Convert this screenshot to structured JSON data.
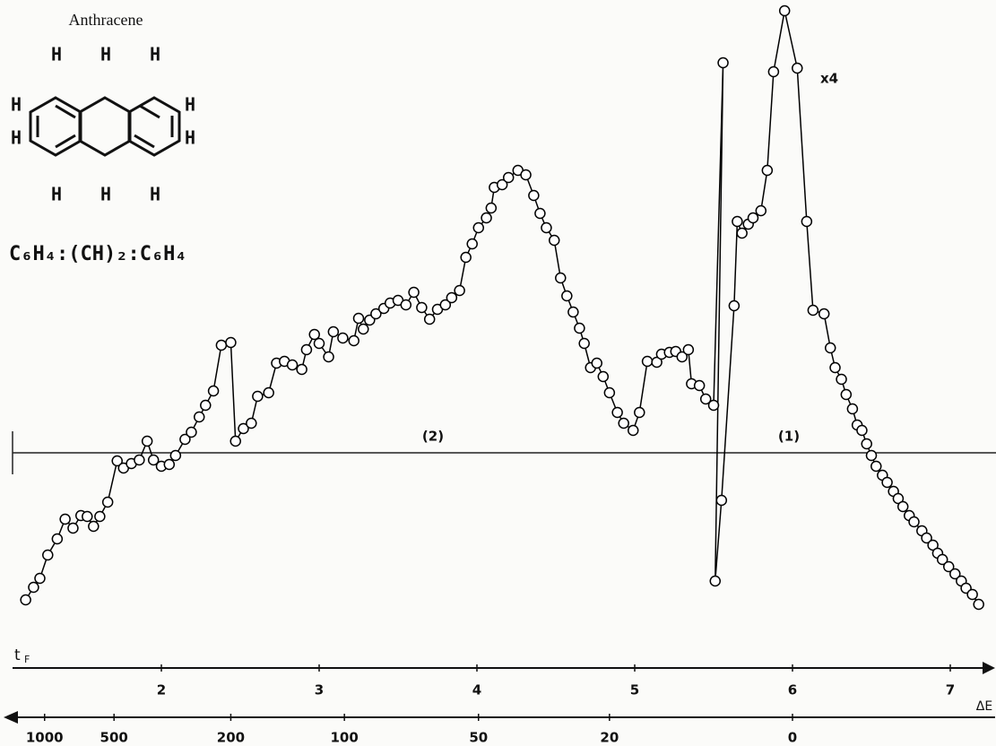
{
  "molecule": {
    "name": "Anthracene",
    "atoms": [
      "H",
      "H",
      "H",
      "H",
      "H",
      "H",
      "H",
      "H",
      "H",
      "H"
    ],
    "formula": "C₆H₄:(CH)₂:C₆H₄"
  },
  "chart_data": {
    "type": "line",
    "markers": true,
    "color": "#000000",
    "annotations": [
      "x4",
      "(2)",
      "(1)"
    ],
    "x_label": {
      "main": "t",
      "sub": "F"
    },
    "x": [
      1.14,
      1.19,
      1.23,
      1.28,
      1.34,
      1.39,
      1.44,
      1.49,
      1.53,
      1.57,
      1.61,
      1.66,
      1.72,
      1.76,
      1.81,
      1.86,
      1.91,
      1.95,
      2.0,
      2.05,
      2.09,
      2.15,
      2.19,
      2.24,
      2.28,
      2.33,
      2.38,
      2.44,
      2.47,
      2.52,
      2.57,
      2.61,
      2.68,
      2.73,
      2.78,
      2.83,
      2.89,
      2.92,
      2.97,
      3.0,
      3.06,
      3.09,
      3.15,
      3.22,
      3.25,
      3.28,
      3.32,
      3.36,
      3.41,
      3.45,
      3.5,
      3.55,
      3.6,
      3.65,
      3.7,
      3.75,
      3.8,
      3.84,
      3.89,
      3.93,
      3.97,
      4.01,
      4.06,
      4.09,
      4.11,
      4.16,
      4.2,
      4.26,
      4.31,
      4.36,
      4.4,
      4.44,
      4.49,
      4.53,
      4.57,
      4.61,
      4.65,
      4.68,
      4.72,
      4.76,
      4.8,
      4.84,
      4.89,
      4.93,
      4.99,
      5.03,
      5.08,
      5.14,
      5.17,
      5.22,
      5.26,
      5.3,
      5.34,
      5.36,
      5.41,
      5.45,
      5.5,
      5.56,
      5.51,
      5.55,
      5.63,
      5.65,
      5.68,
      5.72,
      5.75,
      5.8,
      5.84,
      5.88,
      5.95,
      6.03,
      6.09,
      6.13,
      6.2,
      6.24,
      6.27,
      6.31,
      6.34,
      6.38,
      6.41,
      6.44,
      6.47,
      6.5,
      6.53,
      6.57,
      6.6,
      6.64,
      6.67,
      6.7,
      6.74,
      6.77,
      6.82,
      6.85,
      6.89,
      6.92,
      6.95,
      6.99,
      7.03,
      7.07,
      7.1,
      7.14,
      7.18
    ],
    "values": [
      -1.64,
      -1.5,
      -1.4,
      -1.14,
      -0.96,
      -0.74,
      -0.84,
      -0.7,
      -0.71,
      -0.82,
      -0.71,
      -0.55,
      -0.09,
      -0.17,
      -0.12,
      -0.08,
      0.13,
      -0.08,
      -0.15,
      -0.13,
      -0.03,
      0.15,
      0.23,
      0.4,
      0.53,
      0.69,
      1.2,
      1.23,
      0.13,
      0.27,
      0.33,
      0.63,
      0.67,
      1.0,
      1.02,
      0.98,
      0.93,
      1.15,
      1.32,
      1.22,
      1.07,
      1.35,
      1.28,
      1.25,
      1.5,
      1.38,
      1.48,
      1.55,
      1.61,
      1.67,
      1.7,
      1.65,
      1.79,
      1.62,
      1.49,
      1.6,
      1.65,
      1.73,
      1.81,
      2.18,
      2.33,
      2.51,
      2.62,
      2.73,
      2.96,
      2.99,
      3.07,
      3.15,
      3.1,
      2.87,
      2.67,
      2.51,
      2.37,
      1.95,
      1.75,
      1.57,
      1.39,
      1.22,
      0.95,
      1.0,
      0.85,
      0.67,
      0.45,
      0.33,
      0.25,
      0.45,
      1.02,
      1.01,
      1.1,
      1.12,
      1.13,
      1.07,
      1.15,
      0.77,
      0.75,
      0.6,
      0.53,
      4.35,
      -1.43,
      -0.53,
      1.64,
      2.58,
      2.45,
      2.55,
      2.62,
      2.7,
      3.15,
      4.25,
      4.93,
      4.29,
      2.58,
      1.59,
      1.55,
      1.17,
      0.95,
      0.82,
      0.65,
      0.49,
      0.31,
      0.25,
      0.1,
      -0.03,
      -0.15,
      -0.25,
      -0.33,
      -0.43,
      -0.51,
      -0.6,
      -0.7,
      -0.77,
      -0.87,
      -0.95,
      -1.03,
      -1.12,
      -1.19,
      -1.27,
      -1.35,
      -1.43,
      -1.51,
      -1.58,
      -1.69
    ],
    "xlim": [
      1,
      7.25
    ],
    "ylim": [
      -2,
      5
    ],
    "xticks": [
      2,
      3,
      4,
      5,
      6,
      7
    ],
    "delta_e_axis": {
      "label": "ΔE",
      "ticks": [
        1000,
        500,
        200,
        100,
        50,
        20,
        0
      ],
      "tick_positions_tF": [
        1.26,
        1.7,
        2.44,
        3.16,
        4.01,
        4.84,
        6.0
      ]
    }
  }
}
